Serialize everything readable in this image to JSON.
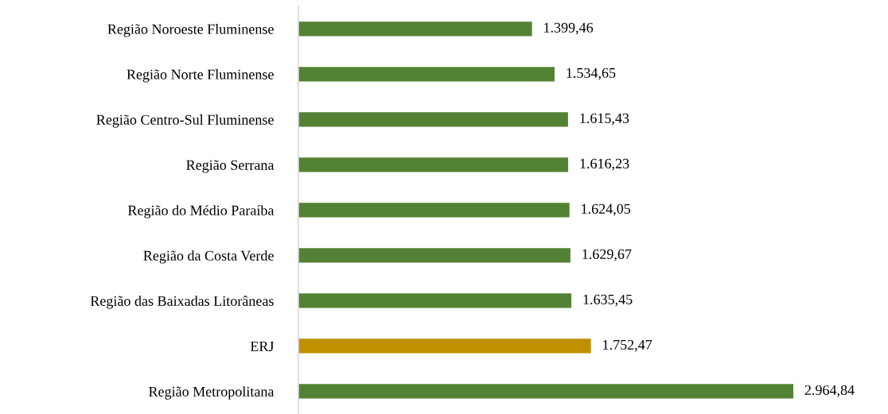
{
  "chart_data": {
    "type": "bar",
    "orientation": "horizontal",
    "categories": [
      "Região Noroeste Fluminense",
      "Região Norte Fluminense",
      "Região Centro-Sul Fluminense",
      "Região Serrana",
      "Região do Médio Paraíba",
      "Região da Costa Verde",
      "Região das Baixadas Litorâneas",
      "ERJ",
      "Região Metropolitana"
    ],
    "values": [
      1399.46,
      1534.65,
      1615.43,
      1616.23,
      1624.05,
      1629.67,
      1635.45,
      1752.47,
      2964.84
    ],
    "colors": [
      "#548235",
      "#548235",
      "#548235",
      "#548235",
      "#548235",
      "#548235",
      "#548235",
      "#bf9000",
      "#548235"
    ],
    "value_labels": [
      "1.399,46",
      "1.534,65",
      "1.615,43",
      "1.616,23",
      "1.624,05",
      "1.629,67",
      "1.635,45",
      "1.752,47",
      "2.964,84"
    ],
    "tick_labels": "y",
    "grid": false,
    "legend": false
  }
}
